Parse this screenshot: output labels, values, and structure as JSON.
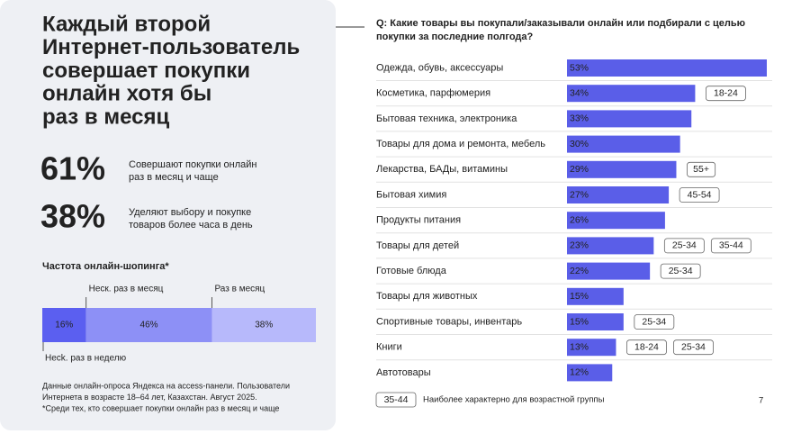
{
  "panel": {
    "title": [
      "Каждый второй",
      "Интернет-пользователь",
      "совершает покупки",
      "онлайн хотя бы",
      "раз в месяц"
    ],
    "stats": [
      {
        "value": "61%",
        "text": [
          "Совершают покупки онлайн",
          "раз в месяц и чаще"
        ]
      },
      {
        "value": "38%",
        "text": [
          "Уделяют выбору и покупке",
          "товаров более часа в день"
        ]
      }
    ],
    "footnote": [
      "Данные онлайн-опроса Яндекса на access-панели. Пользователи",
      "Интернета в возрасте 18–64 лет, Казахстан. Август 2025.",
      "*Среди тех, кто совершает покупки онлайн раз в месяц и чаще"
    ]
  },
  "chart_data": [
    {
      "type": "bar",
      "stacked": true,
      "orientation": "horizontal",
      "title": "Частота онлайн-шопинга*",
      "series": [
        {
          "name": "Несk. раз в неделю",
          "color": "#5b5ff0",
          "values": [
            16
          ],
          "value_labels": [
            "16%"
          ]
        },
        {
          "name": "Неск. раз в месяц",
          "color": "#8d90f6",
          "values": [
            46
          ],
          "value_labels": [
            "46%"
          ]
        },
        {
          "name": "Раз в месяц",
          "color": "#b7b9fb",
          "values": [
            38
          ],
          "value_labels": [
            "38%"
          ]
        }
      ]
    },
    {
      "type": "bar",
      "orientation": "horizontal",
      "title": [
        "Q: Какие товары вы покупали/заказывали онлайн или подбирали с целью",
        "покупки за последние полгода?"
      ],
      "categories": [
        "Одежда, обувь, аксессуары",
        "Косметика, парфюмерия",
        "Бытовая техника, электроника",
        "Товары для дома и ремонта, мебель",
        "Лекарства, БАДы, витамины",
        "Бытовая химия",
        "Продукты питания",
        "Товары для детей",
        "Готовые блюда",
        "Товары для животных",
        "Спортивные товары, инвентарь",
        "Книги",
        "Автотовары"
      ],
      "values": [
        53,
        34,
        33,
        30,
        29,
        27,
        26,
        23,
        22,
        15,
        15,
        13,
        12
      ],
      "value_labels": [
        "53%",
        "34%",
        "33%",
        "30%",
        "29%",
        "27%",
        "26%",
        "23%",
        "22%",
        "15%",
        "15%",
        "13%",
        "12%"
      ],
      "color": "#5a5ee8",
      "tags": [
        [],
        [
          "18-24"
        ],
        [],
        [],
        [
          "55+"
        ],
        [
          "45-54"
        ],
        [],
        [
          "25-34",
          "35-44"
        ],
        [
          "25-34"
        ],
        [],
        [
          "25-34"
        ],
        [
          "18-24",
          "25-34"
        ],
        []
      ],
      "legend_tag": "35-44",
      "legend_text": "Наиболее характерно для возрастной группы",
      "page_number": "7"
    }
  ]
}
